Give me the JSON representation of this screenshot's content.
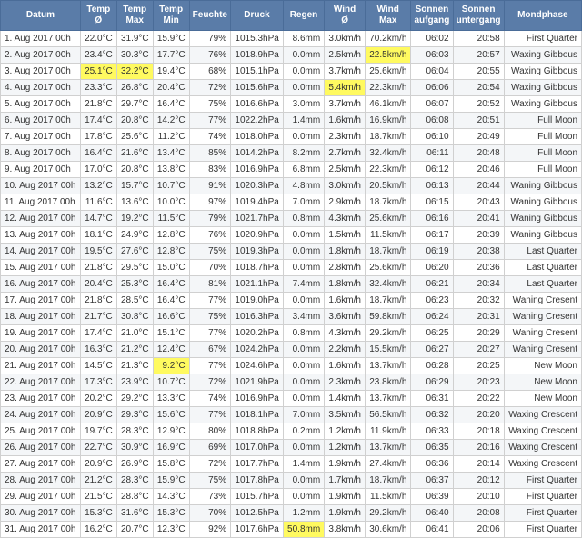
{
  "headers": [
    "Datum",
    "Temp\nØ",
    "Temp\nMax",
    "Temp\nMin",
    "Feuchte",
    "Druck",
    "Regen",
    "Wind\nØ",
    "Wind\nMax",
    "Sonnen\naufgang",
    "Sonnen\nuntergang",
    "Mondphase"
  ],
  "highlights": {
    "1": [
      8
    ],
    "2": [
      1,
      2
    ],
    "3": [
      7
    ],
    "20": [
      3
    ],
    "30": [
      6
    ]
  },
  "rows": [
    [
      "1. Aug 2017 00h",
      "22.0°C",
      "31.9°C",
      "15.9°C",
      "79%",
      "1015.3hPa",
      "8.6mm",
      "3.0km/h",
      "70.2km/h",
      "06:02",
      "20:58",
      "First Quarter"
    ],
    [
      "2. Aug 2017 00h",
      "23.4°C",
      "30.3°C",
      "17.7°C",
      "76%",
      "1018.9hPa",
      "0.0mm",
      "2.5km/h",
      "22.5km/h",
      "06:03",
      "20:57",
      "Waxing Gibbous"
    ],
    [
      "3. Aug 2017 00h",
      "25.1°C",
      "32.2°C",
      "19.4°C",
      "68%",
      "1015.1hPa",
      "0.0mm",
      "3.7km/h",
      "25.6km/h",
      "06:04",
      "20:55",
      "Waxing Gibbous"
    ],
    [
      "4. Aug 2017 00h",
      "23.3°C",
      "26.8°C",
      "20.4°C",
      "72%",
      "1015.6hPa",
      "0.0mm",
      "5.4km/h",
      "22.3km/h",
      "06:06",
      "20:54",
      "Waxing Gibbous"
    ],
    [
      "5. Aug 2017 00h",
      "21.8°C",
      "29.7°C",
      "16.4°C",
      "75%",
      "1016.6hPa",
      "3.0mm",
      "3.7km/h",
      "46.1km/h",
      "06:07",
      "20:52",
      "Waxing Gibbous"
    ],
    [
      "6. Aug 2017 00h",
      "17.4°C",
      "20.8°C",
      "14.2°C",
      "77%",
      "1022.2hPa",
      "1.4mm",
      "1.6km/h",
      "16.9km/h",
      "06:08",
      "20:51",
      "Full Moon"
    ],
    [
      "7. Aug 2017 00h",
      "17.8°C",
      "25.6°C",
      "11.2°C",
      "74%",
      "1018.0hPa",
      "0.0mm",
      "2.3km/h",
      "18.7km/h",
      "06:10",
      "20:49",
      "Full Moon"
    ],
    [
      "8. Aug 2017 00h",
      "16.4°C",
      "21.6°C",
      "13.4°C",
      "85%",
      "1014.2hPa",
      "8.2mm",
      "2.7km/h",
      "32.4km/h",
      "06:11",
      "20:48",
      "Full Moon"
    ],
    [
      "9. Aug 2017 00h",
      "17.0°C",
      "20.8°C",
      "13.8°C",
      "83%",
      "1016.9hPa",
      "6.8mm",
      "2.5km/h",
      "22.3km/h",
      "06:12",
      "20:46",
      "Full Moon"
    ],
    [
      "10. Aug 2017 00h",
      "13.2°C",
      "15.7°C",
      "10.7°C",
      "91%",
      "1020.3hPa",
      "4.8mm",
      "3.0km/h",
      "20.5km/h",
      "06:13",
      "20:44",
      "Waning Gibbous"
    ],
    [
      "11. Aug 2017 00h",
      "11.6°C",
      "13.6°C",
      "10.0°C",
      "97%",
      "1019.4hPa",
      "7.0mm",
      "2.9km/h",
      "18.7km/h",
      "06:15",
      "20:43",
      "Waning Gibbous"
    ],
    [
      "12. Aug 2017 00h",
      "14.7°C",
      "19.2°C",
      "11.5°C",
      "79%",
      "1021.7hPa",
      "0.8mm",
      "4.3km/h",
      "25.6km/h",
      "06:16",
      "20:41",
      "Waning Gibbous"
    ],
    [
      "13. Aug 2017 00h",
      "18.1°C",
      "24.9°C",
      "12.8°C",
      "76%",
      "1020.9hPa",
      "0.0mm",
      "1.5km/h",
      "11.5km/h",
      "06:17",
      "20:39",
      "Waning Gibbous"
    ],
    [
      "14. Aug 2017 00h",
      "19.5°C",
      "27.6°C",
      "12.8°C",
      "75%",
      "1019.3hPa",
      "0.0mm",
      "1.8km/h",
      "18.7km/h",
      "06:19",
      "20:38",
      "Last Quarter"
    ],
    [
      "15. Aug 2017 00h",
      "21.8°C",
      "29.5°C",
      "15.0°C",
      "70%",
      "1018.7hPa",
      "0.0mm",
      "2.8km/h",
      "25.6km/h",
      "06:20",
      "20:36",
      "Last Quarter"
    ],
    [
      "16. Aug 2017 00h",
      "20.4°C",
      "25.3°C",
      "16.4°C",
      "81%",
      "1021.1hPa",
      "7.4mm",
      "1.8km/h",
      "32.4km/h",
      "06:21",
      "20:34",
      "Last Quarter"
    ],
    [
      "17. Aug 2017 00h",
      "21.8°C",
      "28.5°C",
      "16.4°C",
      "77%",
      "1019.0hPa",
      "0.0mm",
      "1.6km/h",
      "18.7km/h",
      "06:23",
      "20:32",
      "Waning Cresent"
    ],
    [
      "18. Aug 2017 00h",
      "21.7°C",
      "30.8°C",
      "16.6°C",
      "75%",
      "1016.3hPa",
      "3.4mm",
      "3.6km/h",
      "59.8km/h",
      "06:24",
      "20:31",
      "Waning Cresent"
    ],
    [
      "19. Aug 2017 00h",
      "17.4°C",
      "21.0°C",
      "15.1°C",
      "77%",
      "1020.2hPa",
      "0.8mm",
      "4.3km/h",
      "29.2km/h",
      "06:25",
      "20:29",
      "Waning Cresent"
    ],
    [
      "20. Aug 2017 00h",
      "16.3°C",
      "21.2°C",
      "12.4°C",
      "67%",
      "1024.2hPa",
      "0.0mm",
      "2.2km/h",
      "15.5km/h",
      "06:27",
      "20:27",
      "Waning Cresent"
    ],
    [
      "21. Aug 2017 00h",
      "14.5°C",
      "21.3°C",
      "9.2°C",
      "77%",
      "1024.6hPa",
      "0.0mm",
      "1.6km/h",
      "13.7km/h",
      "06:28",
      "20:25",
      "New Moon"
    ],
    [
      "22. Aug 2017 00h",
      "17.3°C",
      "23.9°C",
      "10.7°C",
      "72%",
      "1021.9hPa",
      "0.0mm",
      "2.3km/h",
      "23.8km/h",
      "06:29",
      "20:23",
      "New Moon"
    ],
    [
      "23. Aug 2017 00h",
      "20.2°C",
      "29.2°C",
      "13.3°C",
      "74%",
      "1016.9hPa",
      "0.0mm",
      "1.4km/h",
      "13.7km/h",
      "06:31",
      "20:22",
      "New Moon"
    ],
    [
      "24. Aug 2017 00h",
      "20.9°C",
      "29.3°C",
      "15.6°C",
      "77%",
      "1018.1hPa",
      "7.0mm",
      "3.5km/h",
      "56.5km/h",
      "06:32",
      "20:20",
      "Waxing Crescent"
    ],
    [
      "25. Aug 2017 00h",
      "19.7°C",
      "28.3°C",
      "12.9°C",
      "80%",
      "1018.8hPa",
      "0.2mm",
      "1.2km/h",
      "11.9km/h",
      "06:33",
      "20:18",
      "Waxing Crescent"
    ],
    [
      "26. Aug 2017 00h",
      "22.7°C",
      "30.9°C",
      "16.9°C",
      "69%",
      "1017.0hPa",
      "0.0mm",
      "1.2km/h",
      "13.7km/h",
      "06:35",
      "20:16",
      "Waxing Crescent"
    ],
    [
      "27. Aug 2017 00h",
      "20.9°C",
      "26.9°C",
      "15.8°C",
      "72%",
      "1017.7hPa",
      "1.4mm",
      "1.9km/h",
      "27.4km/h",
      "06:36",
      "20:14",
      "Waxing Crescent"
    ],
    [
      "28. Aug 2017 00h",
      "21.2°C",
      "28.3°C",
      "15.9°C",
      "75%",
      "1017.8hPa",
      "0.0mm",
      "1.7km/h",
      "18.7km/h",
      "06:37",
      "20:12",
      "First Quarter"
    ],
    [
      "29. Aug 2017 00h",
      "21.5°C",
      "28.8°C",
      "14.3°C",
      "73%",
      "1015.7hPa",
      "0.0mm",
      "1.9km/h",
      "11.5km/h",
      "06:39",
      "20:10",
      "First Quarter"
    ],
    [
      "30. Aug 2017 00h",
      "15.3°C",
      "31.6°C",
      "15.3°C",
      "70%",
      "1012.5hPa",
      "1.2mm",
      "1.9km/h",
      "29.2km/h",
      "06:40",
      "20:08",
      "First Quarter"
    ],
    [
      "31. Aug 2017 00h",
      "16.2°C",
      "20.7°C",
      "12.3°C",
      "92%",
      "1017.6hPa",
      "50.8mm",
      "3.8km/h",
      "30.6km/h",
      "06:41",
      "20:06",
      "First Quarter"
    ]
  ]
}
